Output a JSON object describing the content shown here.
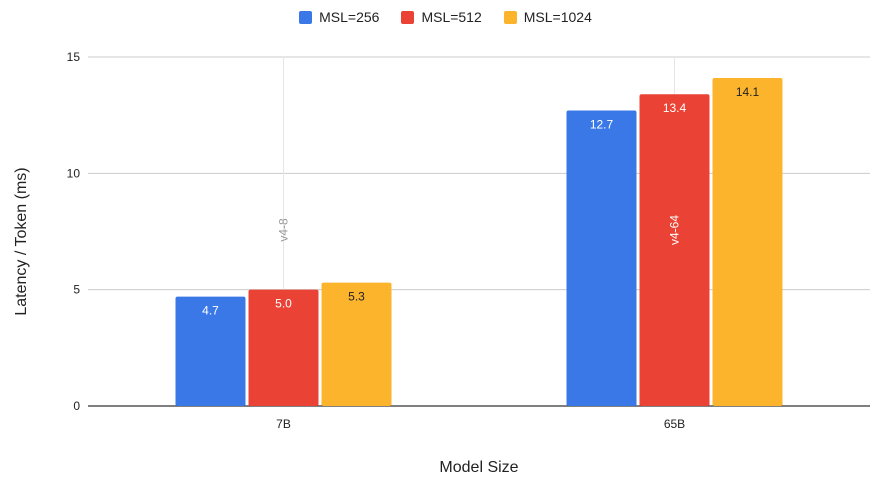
{
  "chart_data": {
    "type": "bar",
    "categories": [
      "7B",
      "65B"
    ],
    "series": [
      {
        "name": "MSL=256",
        "color": "#3b78e7",
        "values": [
          4.7,
          12.7
        ],
        "labels": [
          "4.7",
          "12.7"
        ]
      },
      {
        "name": "MSL=512",
        "color": "#ea4335",
        "values": [
          5.0,
          13.4
        ],
        "labels": [
          "5.0",
          "13.4"
        ]
      },
      {
        "name": "MSL=1024",
        "color": "#fbb42c",
        "values": [
          5.3,
          14.1
        ],
        "labels": [
          "5.3",
          "14.1"
        ]
      }
    ],
    "xlabel": "Model Size",
    "ylabel": "Latency / Token (ms)",
    "ylim": [
      0,
      15
    ],
    "yticks": [
      "0",
      "5",
      "10",
      "15"
    ],
    "grid": true,
    "legend": "top-center",
    "annotations": [
      {
        "text": "v4-8",
        "category": "7B"
      },
      {
        "text": "v4-64",
        "category": "65B"
      }
    ]
  }
}
